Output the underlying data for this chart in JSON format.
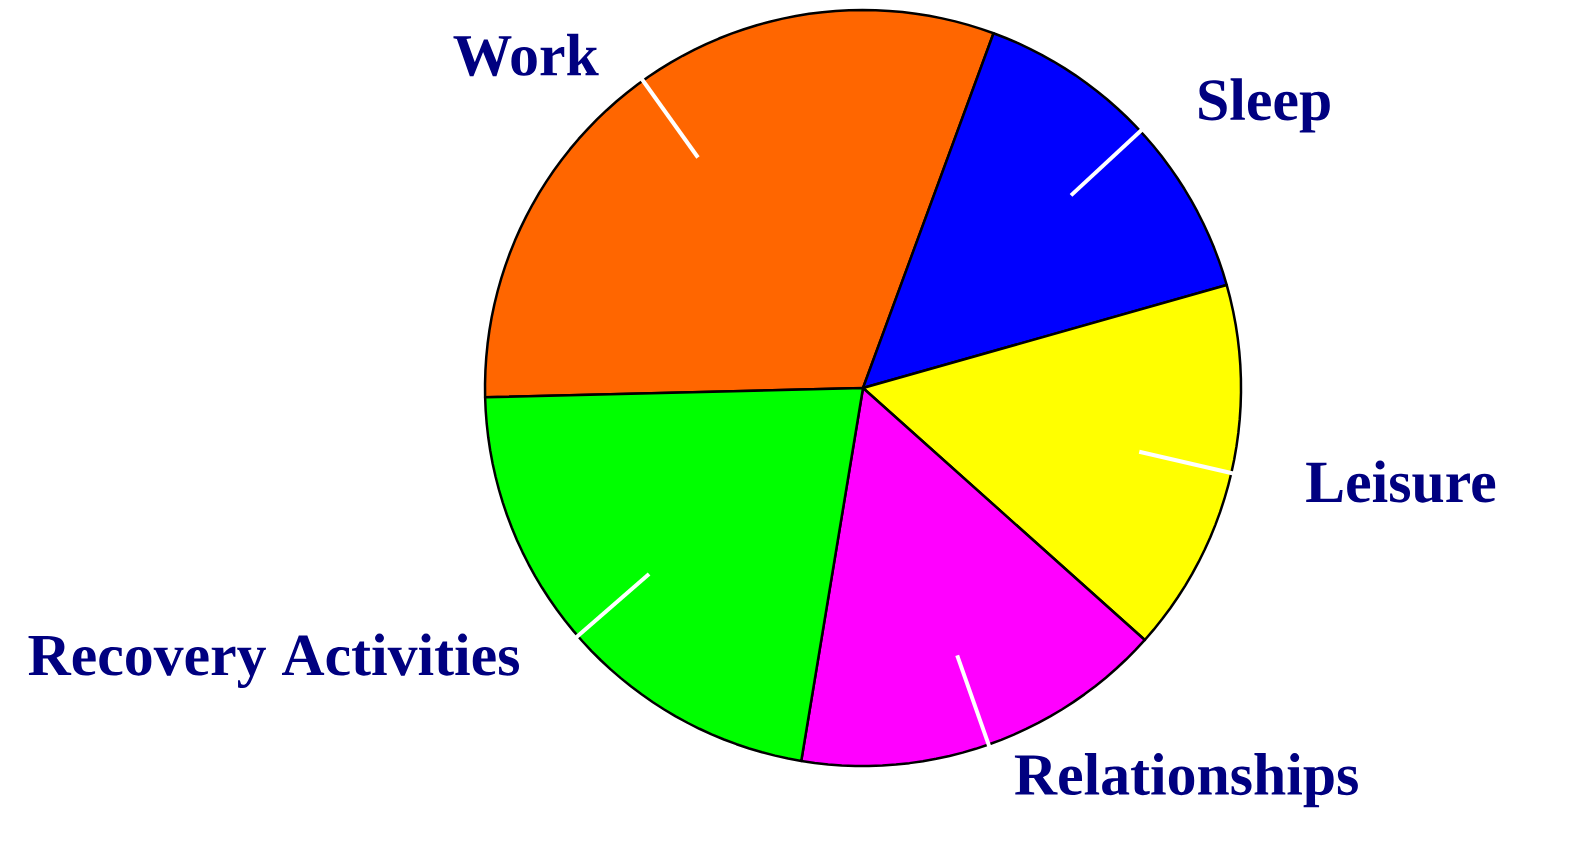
{
  "chart_data": {
    "type": "pie",
    "categories": [
      "Work",
      "Sleep",
      "Leisure",
      "Relationships",
      "Recovery Activities"
    ],
    "values": [
      31,
      15,
      16,
      16,
      22
    ],
    "colors": [
      "#ff6600",
      "#0000ff",
      "#ffff00",
      "#ff00ff",
      "#00ff00"
    ]
  }
}
